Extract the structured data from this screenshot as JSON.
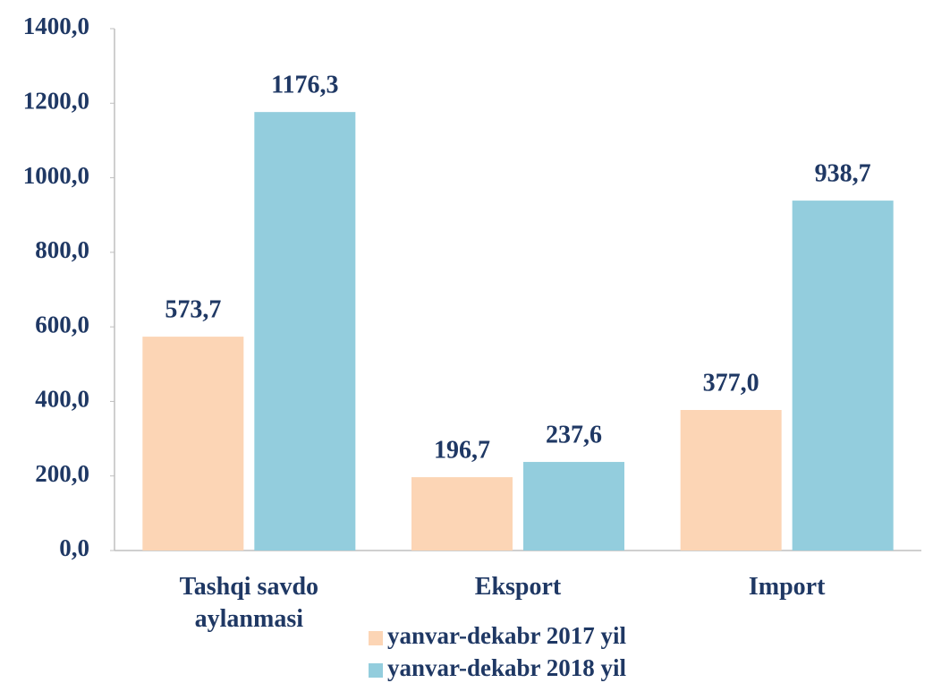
{
  "chart_data": {
    "type": "bar",
    "categories": [
      "Tashqi savdo aylanmasi",
      "Eksport",
      "Import"
    ],
    "series": [
      {
        "name": "yanvar-dekabr 2017 yil",
        "color": "#fcd5b5",
        "values": [
          573.7,
          196.7,
          377.0
        ],
        "value_labels": [
          "573,7",
          "196,7",
          "377,0"
        ]
      },
      {
        "name": "yanvar-dekabr 2018 yil",
        "color": "#93cddd",
        "values": [
          1176.3,
          237.6,
          938.7
        ],
        "value_labels": [
          "1176,3",
          "237,6",
          "938,7"
        ]
      }
    ],
    "ylim": [
      0,
      1400
    ],
    "yticks": [
      {
        "value": 0,
        "label": "0,0"
      },
      {
        "value": 200,
        "label": "200,0"
      },
      {
        "value": 400,
        "label": "400,0"
      },
      {
        "value": 600,
        "label": "600,0"
      },
      {
        "value": 800,
        "label": "800,0"
      },
      {
        "value": 1000,
        "label": "1000,0"
      },
      {
        "value": 1200,
        "label": "1200,0"
      },
      {
        "value": 1400,
        "label": "1400,0"
      }
    ],
    "grid": false,
    "legend": "bottom"
  }
}
